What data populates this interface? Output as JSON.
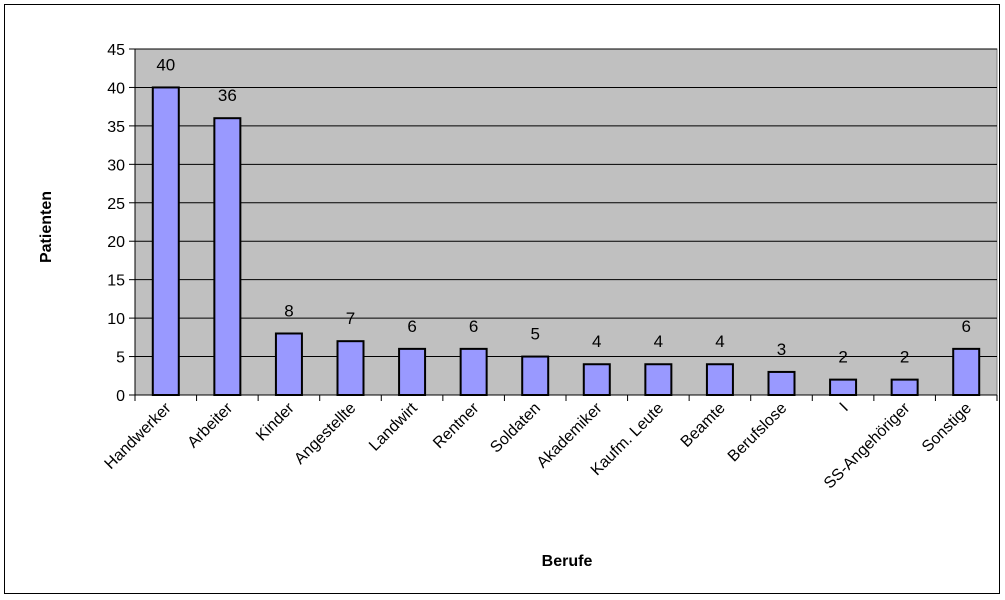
{
  "chart_data": {
    "type": "bar",
    "title": "",
    "xlabel": "Berufe",
    "ylabel": "Patienten",
    "categories": [
      "Handwerker",
      "Arbeiter",
      "Kinder",
      "Angestellte",
      "Landwirt",
      "Rentner",
      "Soldaten",
      "Akademiker",
      "Kaufm. Leute",
      "Beamte",
      "Berufslose",
      "I",
      "SS-Angehöriger",
      "Sonstige"
    ],
    "values": [
      40,
      36,
      8,
      7,
      6,
      6,
      5,
      4,
      4,
      4,
      3,
      2,
      2,
      6
    ],
    "data_labels": [
      "40",
      "36",
      "8",
      "7",
      "6",
      "6",
      "5",
      "4",
      "4",
      "4",
      "3",
      "2",
      "2",
      "6"
    ],
    "ylim": [
      0,
      45
    ],
    "yticks": [
      0,
      5,
      10,
      15,
      20,
      25,
      30,
      35,
      40,
      45
    ],
    "grid": true,
    "legend": "none",
    "colors": {
      "bar_fill": "#9999ff",
      "bar_stroke": "#000000",
      "plot_background": "#c0c0c0",
      "gridline": "#000000"
    }
  }
}
